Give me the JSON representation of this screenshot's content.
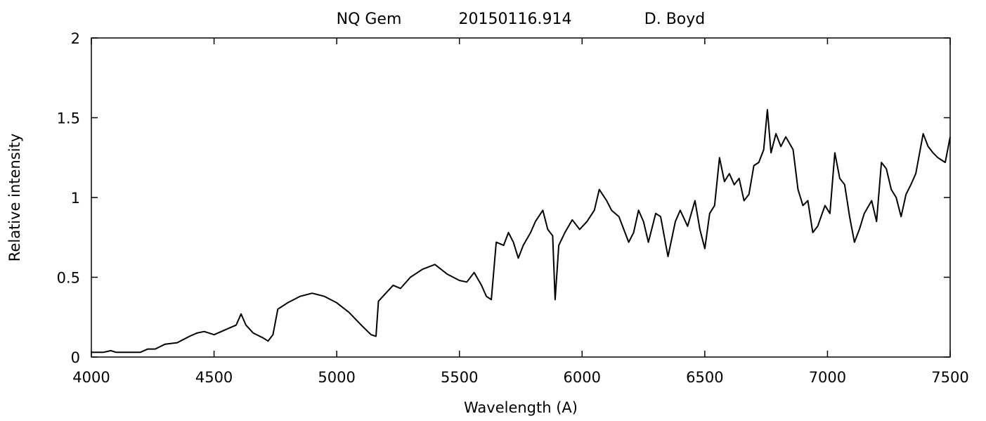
{
  "chart_data": {
    "type": "line",
    "title_parts": [
      "NQ Gem",
      "20150116.914",
      "D. Boyd"
    ],
    "xlabel": "Wavelength (A)",
    "ylabel": "Relative intensity",
    "xlim": [
      4000,
      7500
    ],
    "ylim": [
      0,
      2
    ],
    "xticks": [
      4000,
      4500,
      5000,
      5500,
      6000,
      6500,
      7000,
      7500
    ],
    "xtick_labels": [
      "4000",
      "4500",
      "5000",
      "5500",
      "6000",
      "6500",
      "7000",
      "7500"
    ],
    "yticks": [
      0,
      0.5,
      1,
      1.5,
      2
    ],
    "ytick_labels": [
      "0",
      "0.5",
      "1",
      "1.5",
      "2"
    ],
    "grid": false,
    "line_color": "#000000",
    "series": [
      {
        "x": [
          4000,
          4050,
          4080,
          4100,
          4150,
          4200,
          4230,
          4260,
          4300,
          4350,
          4400,
          4430,
          4460,
          4500,
          4530,
          4560,
          4590,
          4610,
          4630,
          4660,
          4700,
          4720,
          4740,
          4760,
          4800,
          4850,
          4900,
          4950,
          5000,
          5050,
          5100,
          5140,
          5160,
          5170,
          5200,
          5230,
          5260,
          5300,
          5350,
          5400,
          5450,
          5500,
          5530,
          5560,
          5590,
          5610,
          5630,
          5650,
          5680,
          5700,
          5720,
          5740,
          5760,
          5790,
          5810,
          5840,
          5860,
          5880,
          5890,
          5905,
          5930,
          5960,
          5990,
          6020,
          6050,
          6070,
          6100,
          6120,
          6150,
          6170,
          6190,
          6210,
          6230,
          6250,
          6270,
          6300,
          6320,
          6350,
          6380,
          6400,
          6430,
          6460,
          6480,
          6500,
          6520,
          6540,
          6560,
          6580,
          6600,
          6620,
          6640,
          6660,
          6680,
          6700,
          6720,
          6740,
          6755,
          6770,
          6790,
          6810,
          6830,
          6860,
          6880,
          6900,
          6920,
          6940,
          6960,
          6990,
          7010,
          7030,
          7050,
          7070,
          7090,
          7110,
          7130,
          7150,
          7180,
          7200,
          7220,
          7240,
          7260,
          7280,
          7300,
          7320,
          7340,
          7360,
          7390,
          7410,
          7430,
          7450,
          7480,
          7500
        ],
        "y": [
          0.03,
          0.03,
          0.04,
          0.03,
          0.03,
          0.03,
          0.05,
          0.05,
          0.08,
          0.09,
          0.13,
          0.15,
          0.16,
          0.14,
          0.16,
          0.18,
          0.2,
          0.27,
          0.2,
          0.15,
          0.12,
          0.1,
          0.14,
          0.3,
          0.34,
          0.38,
          0.4,
          0.38,
          0.34,
          0.28,
          0.2,
          0.14,
          0.13,
          0.35,
          0.4,
          0.45,
          0.43,
          0.5,
          0.55,
          0.58,
          0.52,
          0.48,
          0.47,
          0.53,
          0.45,
          0.38,
          0.36,
          0.72,
          0.7,
          0.78,
          0.72,
          0.62,
          0.7,
          0.78,
          0.85,
          0.92,
          0.8,
          0.76,
          0.36,
          0.7,
          0.78,
          0.86,
          0.8,
          0.85,
          0.92,
          1.05,
          0.98,
          0.92,
          0.88,
          0.8,
          0.72,
          0.78,
          0.92,
          0.85,
          0.72,
          0.9,
          0.88,
          0.63,
          0.85,
          0.92,
          0.82,
          0.98,
          0.8,
          0.68,
          0.9,
          0.95,
          1.25,
          1.1,
          1.15,
          1.08,
          1.12,
          0.98,
          1.02,
          1.2,
          1.22,
          1.3,
          1.55,
          1.28,
          1.4,
          1.32,
          1.38,
          1.3,
          1.05,
          0.95,
          0.98,
          0.78,
          0.82,
          0.95,
          0.9,
          1.28,
          1.12,
          1.08,
          0.88,
          0.72,
          0.8,
          0.9,
          0.98,
          0.85,
          1.22,
          1.18,
          1.05,
          1.0,
          0.88,
          1.02,
          1.08,
          1.15,
          1.4,
          1.32,
          1.28,
          1.25,
          1.22,
          1.38
        ]
      }
    ]
  }
}
